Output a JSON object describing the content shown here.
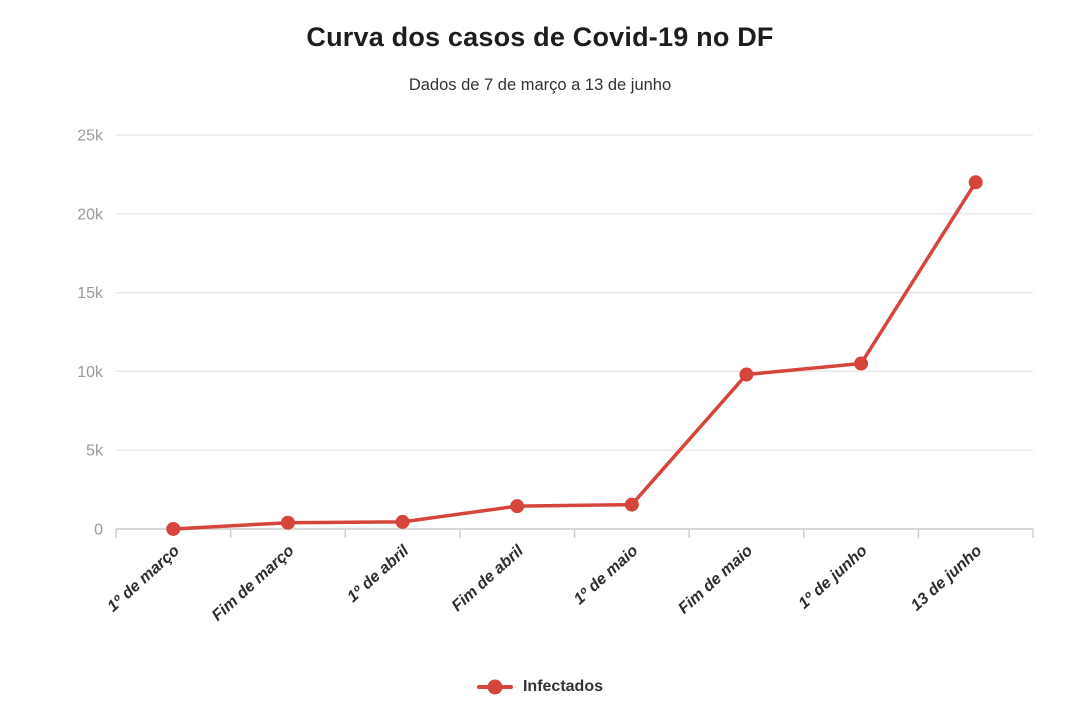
{
  "chart_data": {
    "type": "line",
    "title": "Curva dos casos de Covid-19 no DF",
    "subtitle": "Dados de 7 de março a 13 de junho",
    "categories": [
      "1º de março",
      "Fim de março",
      "1º de abril",
      "Fim de abril",
      "1º de maio",
      "Fim de maio",
      "1º de junho",
      "13 de junho"
    ],
    "series": [
      {
        "name": "Infectados",
        "color": "#d6453c",
        "values": [
          1,
          400,
          450,
          1450,
          1550,
          9800,
          10500,
          22000
        ]
      }
    ],
    "xlabel": "",
    "ylabel": "",
    "ylim": [
      0,
      25000
    ],
    "yticks": [
      0,
      5000,
      10000,
      15000,
      20000,
      25000
    ],
    "ytick_labels": [
      "0",
      "5k",
      "10k",
      "15k",
      "20k",
      "25k"
    ],
    "grid": "horizontal",
    "legend_position": "bottom",
    "x_label_angle": -42,
    "style": {
      "grid_color": "#e8e8e8",
      "axis_color": "#d9d9d9",
      "tick_color": "#cfcfcf",
      "y_label_color": "#9b9b9b",
      "x_label_color": "#2d2d2d",
      "title_color": "#1d1d1d",
      "subtitle_color": "#333333",
      "background": "#ffffff"
    }
  }
}
